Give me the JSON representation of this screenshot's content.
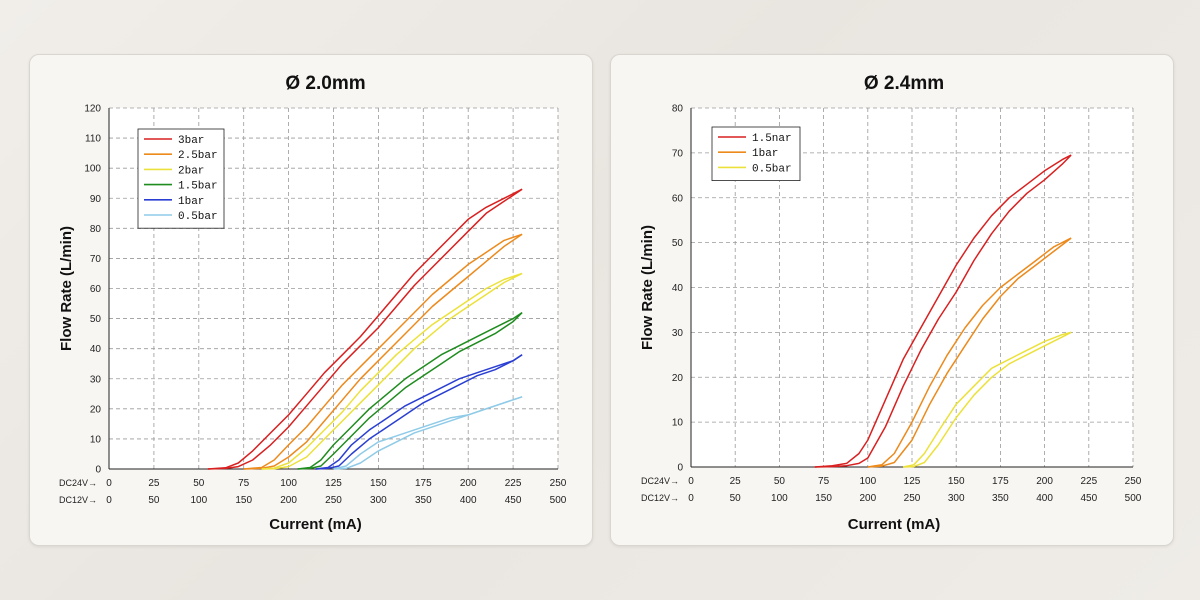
{
  "colors": {
    "red": "#d92020",
    "orange": "#ec8a1c",
    "yellow": "#ece13a",
    "green": "#1f8c1f",
    "blue": "#2a3fd2",
    "light_blue": "#8fcbe8",
    "grid": "#9a9a9a",
    "axis": "#222222"
  },
  "chart_data": [
    {
      "type": "line",
      "title": "Ø 2.0mm",
      "xlabel": "Current (mA)",
      "ylabel": "Flow Rate (L/min)",
      "x_axis_label_dc24": "DC24V→",
      "x_axis_label_dc12": "DC12V→",
      "x_ticks_dc24": [
        "0",
        "25",
        "50",
        "75",
        "100",
        "125",
        "150",
        "175",
        "200",
        "225",
        "250"
      ],
      "x_ticks_dc12": [
        "0",
        "50",
        "100",
        "150",
        "200",
        "250",
        "300",
        "350",
        "400",
        "450",
        "500"
      ],
      "xlim": [
        0,
        250
      ],
      "ylim": [
        0,
        120
      ],
      "y_ticks": [
        "0",
        "10",
        "20",
        "30",
        "40",
        "50",
        "60",
        "70",
        "80",
        "90",
        "100",
        "110",
        "120"
      ],
      "grid": true,
      "legend_position": "top-left",
      "series": [
        {
          "name": "3bar",
          "color": "red",
          "x": [
            55,
            65,
            72,
            80,
            90,
            100,
            110,
            120,
            130,
            140,
            150,
            160,
            170,
            180,
            190,
            200,
            210,
            220,
            230
          ],
          "y": [
            0,
            0.4,
            2,
            6,
            12,
            18,
            25,
            32,
            38,
            44,
            51,
            58,
            65,
            71,
            77,
            83,
            87,
            90,
            93
          ],
          "y2": [
            0,
            0.2,
            0.8,
            3,
            8,
            14,
            21,
            28,
            35,
            41,
            47,
            54,
            61,
            67,
            73,
            79,
            85,
            89,
            93
          ]
        },
        {
          "name": "2.5bar",
          "color": "orange",
          "x": [
            75,
            85,
            92,
            100,
            110,
            120,
            130,
            140,
            150,
            160,
            170,
            180,
            190,
            200,
            210,
            220,
            230
          ],
          "y": [
            0,
            0.5,
            3,
            8,
            14,
            21,
            28,
            34,
            40,
            46,
            52,
            58,
            63,
            68,
            72,
            76,
            78
          ],
          "y2": [
            0,
            0.2,
            1,
            4,
            9,
            16,
            23,
            30,
            36,
            42,
            48,
            54,
            59,
            64,
            69,
            74,
            78
          ]
        },
        {
          "name": "2bar",
          "color": "yellow",
          "x": [
            85,
            92,
            100,
            110,
            120,
            130,
            140,
            150,
            160,
            170,
            180,
            190,
            200,
            210,
            220,
            230
          ],
          "y": [
            0,
            0.3,
            2,
            7,
            13,
            19,
            26,
            32,
            38,
            43,
            48,
            52,
            56,
            60,
            63,
            65
          ],
          "y2": [
            0,
            0.1,
            0.8,
            4,
            10,
            16,
            22,
            28,
            34,
            40,
            45,
            50,
            54,
            58,
            62,
            65
          ]
        },
        {
          "name": "1.5bar",
          "color": "green",
          "x": [
            105,
            112,
            118,
            125,
            135,
            145,
            155,
            165,
            175,
            185,
            195,
            205,
            215,
            225,
            230
          ],
          "y": [
            0,
            0.5,
            3,
            8,
            14,
            20,
            25,
            30,
            34,
            38,
            41,
            44,
            47,
            50,
            52
          ],
          "y2": [
            0,
            0.2,
            1,
            5,
            11,
            17,
            22,
            27,
            31,
            35,
            39,
            42,
            45,
            49,
            52
          ]
        },
        {
          "name": "1bar",
          "color": "blue",
          "x": [
            115,
            122,
            128,
            135,
            145,
            155,
            165,
            175,
            185,
            195,
            205,
            215,
            225,
            230
          ],
          "y": [
            0,
            0.5,
            3,
            8,
            13,
            17,
            21,
            24,
            27,
            30,
            32,
            34,
            36,
            38
          ],
          "y2": [
            0,
            0.2,
            1,
            5,
            10,
            14,
            18,
            22,
            25,
            28,
            31,
            33,
            36,
            38
          ]
        },
        {
          "name": "0.5bar",
          "color": "light_blue",
          "x": [
            125,
            132,
            140,
            150,
            160,
            170,
            180,
            190,
            200,
            210,
            220,
            230
          ],
          "y": [
            0,
            1,
            5,
            9,
            11,
            13,
            15,
            17,
            18,
            20,
            22,
            24
          ],
          "y2": [
            0,
            0.2,
            2,
            6,
            9,
            12,
            14,
            16,
            18,
            20,
            22,
            24
          ]
        }
      ]
    },
    {
      "type": "line",
      "title": "Ø 2.4mm",
      "xlabel": "Current (mA)",
      "ylabel": "Flow Rate (L/min)",
      "x_axis_label_dc24": "DC24V→",
      "x_axis_label_dc12": "DC12V→",
      "x_ticks_dc24": [
        "0",
        "25",
        "50",
        "75",
        "100",
        "125",
        "150",
        "175",
        "200",
        "225",
        "250"
      ],
      "x_ticks_dc12": [
        "0",
        "50",
        "100",
        "150",
        "200",
        "250",
        "300",
        "350",
        "400",
        "450",
        "500"
      ],
      "xlim": [
        0,
        250
      ],
      "ylim": [
        0,
        80
      ],
      "y_ticks": [
        "0",
        "10",
        "20",
        "30",
        "40",
        "50",
        "60",
        "70",
        "80"
      ],
      "grid": true,
      "legend_position": "top-left",
      "series": [
        {
          "name": "1.5nar",
          "color": "red",
          "x": [
            70,
            80,
            88,
            95,
            100,
            110,
            120,
            130,
            140,
            150,
            160,
            170,
            180,
            190,
            200,
            210,
            215
          ],
          "y": [
            0,
            0.3,
            0.8,
            3,
            6,
            15,
            24,
            31,
            38,
            45,
            51,
            56,
            60,
            63,
            66,
            68.5,
            69.5
          ],
          "y2": [
            0,
            0.1,
            0.3,
            0.8,
            2,
            9,
            18,
            26,
            33,
            39,
            46,
            52,
            57,
            61,
            64,
            67.5,
            69.5
          ]
        },
        {
          "name": "1bar",
          "color": "orange",
          "x": [
            100,
            108,
            115,
            125,
            135,
            145,
            155,
            165,
            175,
            185,
            195,
            205,
            215
          ],
          "y": [
            0,
            0.5,
            3,
            10,
            18,
            25,
            31,
            36,
            40,
            43,
            46,
            49,
            51
          ],
          "y2": [
            0,
            0.2,
            1,
            6,
            14,
            21,
            27,
            33,
            38,
            42,
            45,
            48,
            51
          ]
        },
        {
          "name": "0.5bar",
          "color": "yellow",
          "x": [
            120,
            126,
            132,
            140,
            150,
            160,
            170,
            180,
            190,
            200,
            210,
            215
          ],
          "y": [
            0,
            0.5,
            3,
            8,
            14,
            18,
            22,
            24,
            26,
            28,
            29.5,
            30
          ],
          "y2": [
            0,
            0.1,
            1,
            5,
            11,
            16,
            20,
            23,
            25,
            27,
            29,
            30
          ]
        }
      ]
    }
  ]
}
